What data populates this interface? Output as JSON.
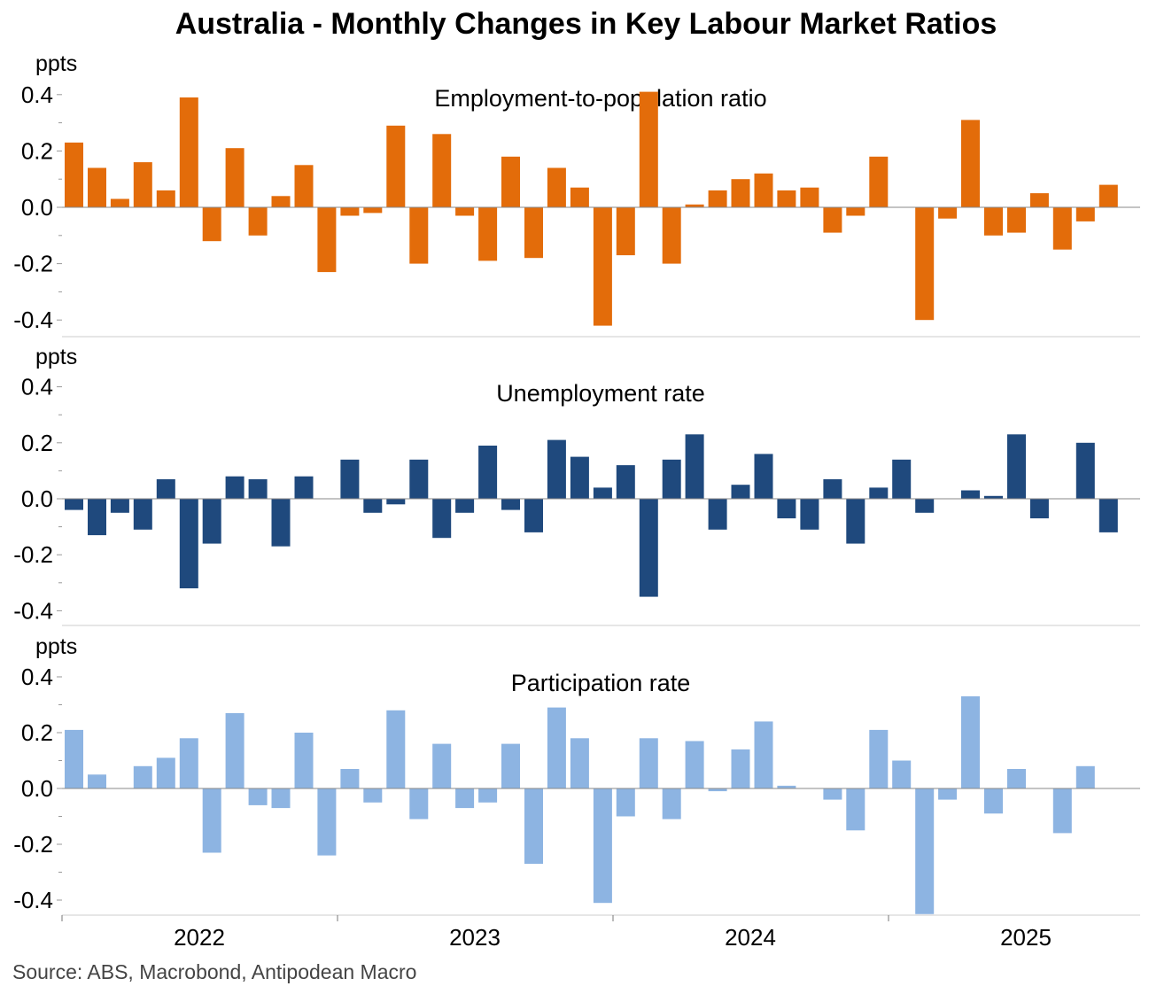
{
  "title": "Australia - Monthly Changes in Key Labour Market Ratios",
  "source": "Source: ABS, Macrobond, Antipodean Macro",
  "chart_data": {
    "type": "bar",
    "x_tick_labels": [
      "2022",
      "2023",
      "2024",
      "2025"
    ],
    "ylabel": "ppts",
    "ylim": [
      -0.45,
      0.45
    ],
    "yticks": [
      "0.4",
      "0.2",
      "0.0",
      "-0.2",
      "-0.4"
    ],
    "panels": [
      {
        "name": "Employment-to-population ratio",
        "color": "#E36C0A",
        "values": [
          0.23,
          0.14,
          0.03,
          0.16,
          0.06,
          0.39,
          -0.12,
          0.21,
          -0.1,
          0.04,
          0.15,
          -0.23,
          -0.03,
          -0.02,
          0.29,
          -0.2,
          0.26,
          -0.03,
          -0.19,
          0.18,
          -0.18,
          0.14,
          0.07,
          -0.42,
          -0.17,
          0.41,
          -0.2,
          0.01,
          0.06,
          0.1,
          0.12,
          0.06,
          0.07,
          -0.09,
          -0.03,
          0.18,
          0.0,
          -0.4,
          -0.04,
          0.31,
          -0.1,
          -0.09,
          0.05,
          -0.15,
          -0.05,
          0.08
        ]
      },
      {
        "name": "Unemployment rate",
        "color": "#1F497D",
        "values": [
          -0.04,
          -0.13,
          -0.05,
          -0.11,
          0.07,
          -0.32,
          -0.16,
          0.08,
          0.07,
          -0.17,
          0.08,
          0.0,
          0.14,
          -0.05,
          -0.02,
          0.14,
          -0.14,
          -0.05,
          0.19,
          -0.04,
          -0.12,
          0.21,
          0.15,
          0.04,
          0.12,
          -0.35,
          0.14,
          0.23,
          -0.11,
          0.05,
          0.16,
          -0.07,
          -0.11,
          0.07,
          -0.16,
          0.04,
          0.14,
          -0.05,
          0.0,
          0.03,
          0.01,
          0.23,
          -0.07,
          0.0,
          0.2,
          -0.12
        ]
      },
      {
        "name": "Participation rate",
        "color": "#8DB4E2",
        "values": [
          0.21,
          0.05,
          0.0,
          0.08,
          0.11,
          0.18,
          -0.23,
          0.27,
          -0.06,
          -0.07,
          0.2,
          -0.24,
          0.07,
          -0.05,
          0.28,
          -0.11,
          0.16,
          -0.07,
          -0.05,
          0.16,
          -0.27,
          0.29,
          0.18,
          -0.41,
          -0.1,
          0.18,
          -0.11,
          0.17,
          -0.01,
          0.14,
          0.24,
          0.01,
          0.0,
          -0.04,
          -0.15,
          0.21,
          0.1,
          -0.45,
          -0.04,
          0.33,
          -0.09,
          0.07,
          0.0,
          -0.16,
          0.08,
          0.0
        ]
      }
    ]
  }
}
